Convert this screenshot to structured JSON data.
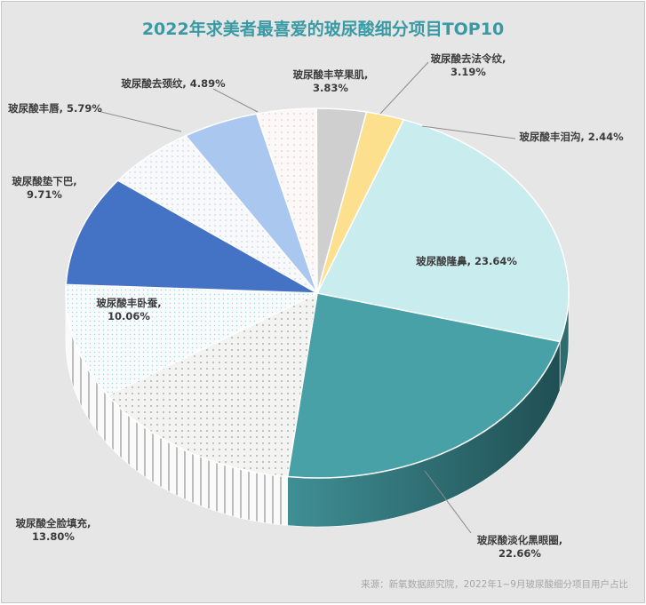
{
  "chart_data": {
    "type": "pie",
    "title": "2022年求美者最喜爱的玻尿酸细分项目TOP10",
    "source": "来源：新氧数据颜究院，2022年1~9月玻尿酸细分项目用户占比",
    "slices": [
      {
        "label": "玻尿酸隆鼻",
        "value": 23.64,
        "display": "23.64%",
        "color": "#c9ecef"
      },
      {
        "label": "玻尿酸淡化黑眼圈",
        "value": 22.66,
        "display": "22.66%",
        "color": "#48a1a6"
      },
      {
        "label": "玻尿酸全脸填充",
        "value": 13.8,
        "display": "13.80%",
        "color": "#f3f4f2",
        "pattern": "dots"
      },
      {
        "label": "玻尿酸丰卧蚕",
        "value": 10.06,
        "display": "10.06%",
        "color": "#f2f8f9",
        "pattern": "cyan-dots"
      },
      {
        "label": "玻尿酸垫下巴",
        "value": 9.71,
        "display": "9.71%",
        "color": "#4472c4"
      },
      {
        "label": "玻尿酸丰唇",
        "value": 5.79,
        "display": "5.79%",
        "color": "#f6f8fb",
        "pattern": "blue-dots"
      },
      {
        "label": "玻尿酸去颈纹",
        "value": 4.89,
        "display": "4.89%",
        "color": "#a9c7ef"
      },
      {
        "label": "玻尿酸丰苹果肌",
        "value": 3.83,
        "display": "3.83%",
        "color": "#faf5f3",
        "pattern": "red-dots"
      },
      {
        "label": "玻尿酸去法令纹",
        "value": 3.19,
        "display": "3.19%",
        "color": "#cfcfcf"
      },
      {
        "label": "玻尿酸丰泪沟",
        "value": 2.44,
        "display": "2.44%",
        "color": "#fde08e"
      }
    ]
  }
}
